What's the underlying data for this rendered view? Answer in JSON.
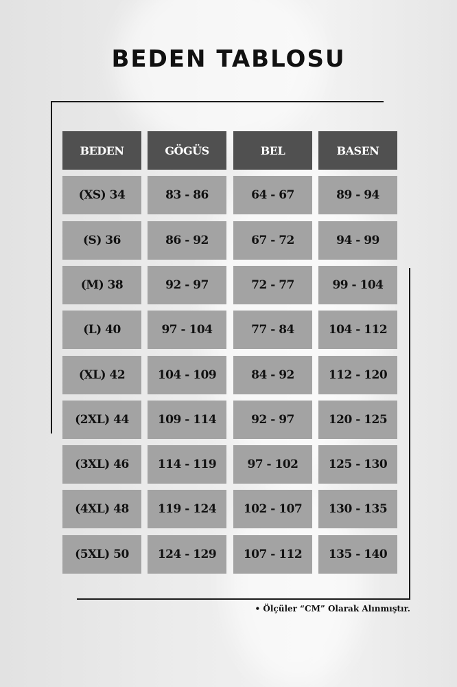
{
  "title": "BEDEN TABLOSU",
  "colors": {
    "header_bg": "#505050",
    "cell_bg": "#a3a3a3",
    "header_text": "#ffffff",
    "cell_text": "#111111"
  },
  "table": {
    "headers": [
      "BEDEN",
      "GÖGÜS",
      "BEL",
      "BASEN"
    ],
    "rows": [
      [
        "(XS) 34",
        "83 - 86",
        "64 - 67",
        "89 - 94"
      ],
      [
        "(S) 36",
        "86 - 92",
        "67 - 72",
        "94 - 99"
      ],
      [
        "(M) 38",
        "92 - 97",
        "72 - 77",
        "99 - 104"
      ],
      [
        "(L) 40",
        "97 - 104",
        "77 - 84",
        "104 - 112"
      ],
      [
        "(XL) 42",
        "104 - 109",
        "84 - 92",
        "112 - 120"
      ],
      [
        "(2XL) 44",
        "109 - 114",
        "92 - 97",
        "120 - 125"
      ],
      [
        "(3XL) 46",
        "114 - 119",
        "97 - 102",
        "125 - 130"
      ],
      [
        "(4XL) 48",
        "119 - 124",
        "102 - 107",
        "130 - 135"
      ],
      [
        "(5XL) 50",
        "124 - 129",
        "107 - 112",
        "135 - 140"
      ]
    ]
  },
  "note": "• Ölçüler “CM” Olarak Alınmıştır."
}
